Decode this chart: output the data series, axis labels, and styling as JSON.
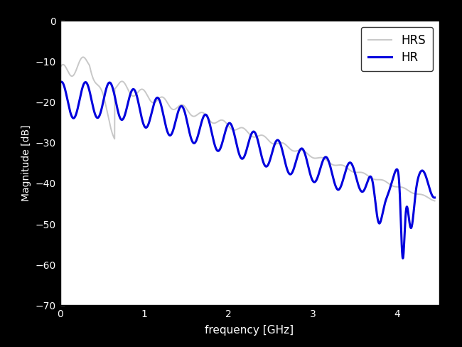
{
  "title": "",
  "xlabel": "frequency [GHz]",
  "ylabel": "Magnitude [dB]",
  "ylim": [
    -70,
    0
  ],
  "xlim": [
    0,
    4.5
  ],
  "yticks": [
    0,
    -10,
    -20,
    -30,
    -40,
    -50,
    -60,
    -70
  ],
  "xticks": [
    0,
    1,
    2,
    3,
    4
  ],
  "legend_labels": [
    "HRS",
    "HR"
  ],
  "hrs_color": "#c8c8c8",
  "hr_color": "#0000dd",
  "hr_linewidth": 2.2,
  "hrs_linewidth": 1.4,
  "background_color": "#ffffff",
  "fig_background": "#000000"
}
